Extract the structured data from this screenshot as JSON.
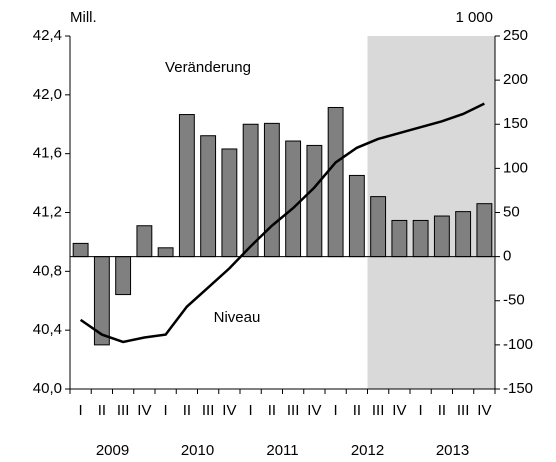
{
  "chart_data": {
    "type": "bar_line",
    "y_unit_label": "Mill.",
    "y2_unit_label": "1 000",
    "categories": [
      "I",
      "II",
      "III",
      "IV",
      "I",
      "II",
      "III",
      "IV",
      "I",
      "II",
      "III",
      "IV",
      "I",
      "II",
      "III",
      "IV",
      "I",
      "II",
      "III",
      "IV"
    ],
    "years": [
      "2009",
      "2010",
      "2011",
      "2012",
      "2013"
    ],
    "shaded_from_category": 14,
    "shade_color": "#d9d9d9",
    "series": [
      {
        "name": "Veränderung",
        "type": "bar",
        "axis": "y2",
        "color": "#808080",
        "values": [
          15,
          -100,
          -43,
          35,
          10,
          161,
          137,
          122,
          150,
          151,
          131,
          126,
          169,
          92,
          68,
          41,
          41,
          46,
          51,
          60
        ]
      },
      {
        "name": "Niveau",
        "type": "line",
        "axis": "y",
        "color": "#000000",
        "values": [
          40.47,
          40.37,
          40.32,
          40.35,
          40.37,
          40.56,
          40.69,
          40.82,
          40.97,
          41.11,
          41.23,
          41.37,
          41.54,
          41.64,
          41.7,
          41.74,
          41.78,
          41.82,
          41.87,
          41.94
        ]
      }
    ],
    "ylim": [
      40.0,
      42.4
    ],
    "yticks": [
      {
        "value": 40.0,
        "label": "40,0"
      },
      {
        "value": 40.4,
        "label": "40,4"
      },
      {
        "value": 40.8,
        "label": "40,8"
      },
      {
        "value": 41.2,
        "label": "41,2"
      },
      {
        "value": 41.6,
        "label": "41,6"
      },
      {
        "value": 42.0,
        "label": "42,0"
      },
      {
        "value": 42.4,
        "label": "42,4"
      }
    ],
    "y2lim": [
      -150,
      250
    ],
    "y2ticks": [
      -150,
      -100,
      -50,
      0,
      50,
      100,
      150,
      200,
      250
    ]
  }
}
